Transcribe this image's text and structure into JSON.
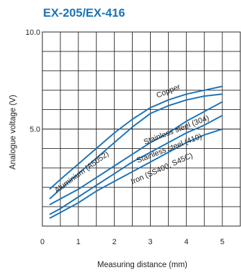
{
  "chart_data": {
    "type": "line",
    "title": "EX-205/EX-416",
    "xlabel": "Measuring distance  (mm)",
    "ylabel": "Analogue voltage (V)",
    "xlim": [
      0,
      5.5
    ],
    "ylim": [
      0,
      10
    ],
    "x_ticks": [
      0,
      1,
      2,
      3,
      4,
      5
    ],
    "y_ticks": [
      5.0,
      10.0
    ],
    "y_tick_labels": [
      "5.0",
      "10.0"
    ],
    "grid": true,
    "line_color": "#1a73b8",
    "series": [
      {
        "name": "Copper",
        "x": [
          0.2,
          0.5,
          1,
          1.5,
          2,
          2.5,
          3,
          3.5,
          4,
          4.5,
          5
        ],
        "y": [
          1.9,
          2.4,
          3.2,
          4.0,
          4.8,
          5.5,
          6.1,
          6.5,
          6.8,
          7.0,
          7.2
        ]
      },
      {
        "name": "Aluminium (A5052)",
        "x": [
          0.2,
          0.5,
          1,
          1.5,
          2,
          2.5,
          3,
          3.5,
          4,
          4.5,
          5
        ],
        "y": [
          1.4,
          1.9,
          2.7,
          3.5,
          4.3,
          5.1,
          5.8,
          6.2,
          6.5,
          6.7,
          6.8
        ]
      },
      {
        "name": "Stainless steel (304)",
        "x": [
          0.2,
          0.5,
          1,
          1.5,
          2,
          2.5,
          3,
          3.5,
          4,
          4.5,
          5
        ],
        "y": [
          1.1,
          1.4,
          1.9,
          2.5,
          3.1,
          3.7,
          4.3,
          4.8,
          5.4,
          5.9,
          6.4
        ]
      },
      {
        "name": "Stainless steel (410)",
        "x": [
          0.2,
          0.5,
          1,
          1.5,
          2,
          2.5,
          3,
          3.5,
          4,
          4.5,
          5
        ],
        "y": [
          0.6,
          0.9,
          1.5,
          2.1,
          2.7,
          3.3,
          3.8,
          4.3,
          4.8,
          5.2,
          5.7
        ]
      },
      {
        "name": "Iron (SS400, S45C)",
        "x": [
          0.2,
          0.5,
          1,
          1.5,
          2,
          2.5,
          3,
          3.5,
          4,
          4.5,
          5
        ],
        "y": [
          0.4,
          0.7,
          1.2,
          1.8,
          2.3,
          2.8,
          3.3,
          3.8,
          4.3,
          4.7,
          5.0
        ]
      }
    ]
  }
}
